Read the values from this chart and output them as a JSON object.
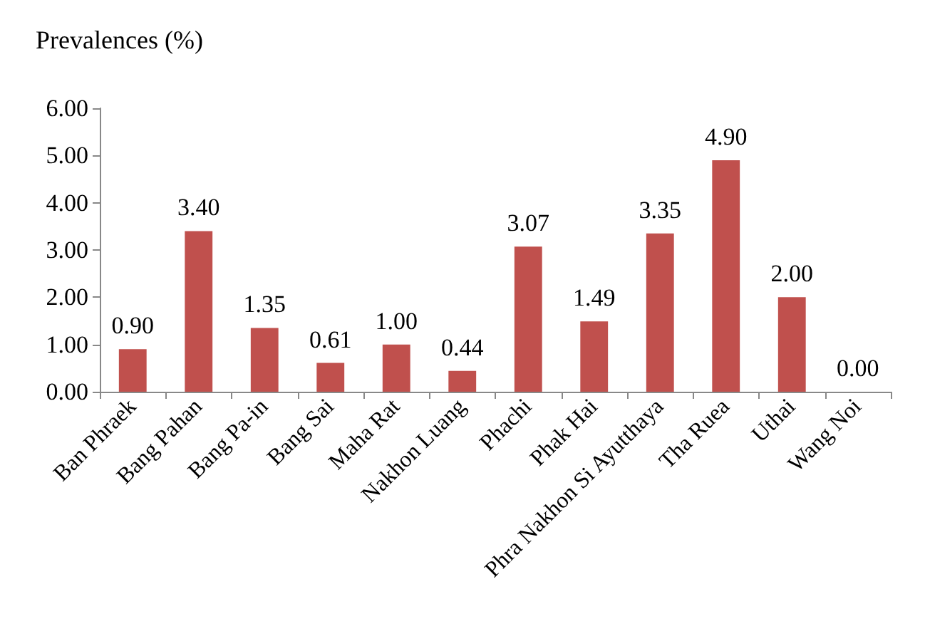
{
  "chart_data": {
    "type": "bar",
    "ylabel": "Prevalences (%)",
    "categories": [
      "Ban Phraek",
      "Bang Pahan",
      "Bang Pa-in",
      "Bang Sai",
      "Maha Rat",
      "Nakhon Luang",
      "Phachi",
      "Phak Hai",
      "Phra Nakhon Si Ayutthaya",
      "Tha Ruea",
      "Uthai",
      "Wang Noi"
    ],
    "values": [
      0.9,
      3.4,
      1.35,
      0.61,
      1.0,
      0.44,
      3.07,
      1.49,
      3.35,
      4.9,
      2.0,
      0.0
    ],
    "value_labels": [
      "0.90",
      "3.40",
      "1.35",
      "0.61",
      "1.00",
      "0.44",
      "3.07",
      "1.49",
      "3.35",
      "4.90",
      "2.00",
      "0.00"
    ],
    "color": "#c0504d",
    "ylim": [
      0,
      6
    ],
    "yticks": [
      {
        "value": 0,
        "label": "0.00"
      },
      {
        "value": 1,
        "label": "1.00"
      },
      {
        "value": 2,
        "label": "2.00"
      },
      {
        "value": 3,
        "label": "3.00"
      },
      {
        "value": 4,
        "label": "4.00"
      },
      {
        "value": 5,
        "label": "5.00"
      },
      {
        "value": 6,
        "label": "6.00"
      }
    ],
    "grid": false
  }
}
